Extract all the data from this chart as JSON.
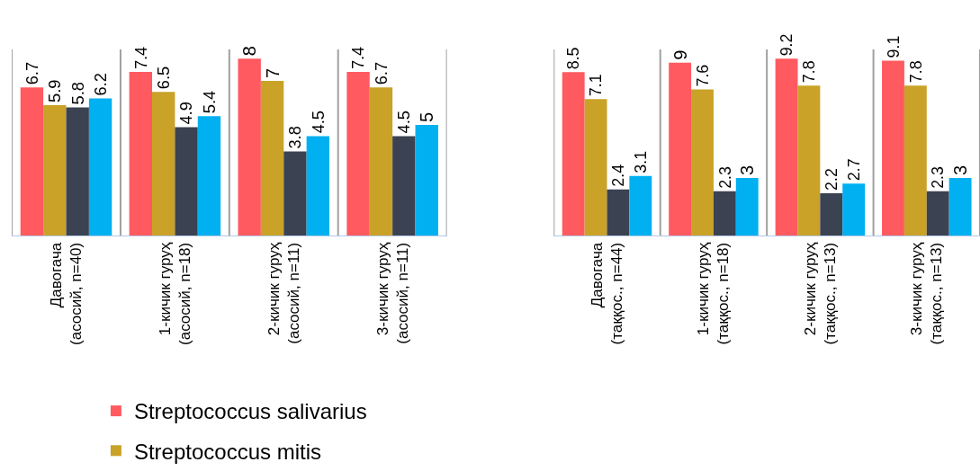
{
  "chart_data": [
    {
      "type": "bar",
      "categories": [
        "Давогача\n(асосий, n=40)",
        "1-кичик гуруҳ\n(асосий, n=18)",
        "2-кичик гуруҳ\n(асосий, n=11)",
        "3-кичик гуруҳ\n(асосий, n=11)"
      ],
      "series": [
        {
          "name": "Streptococcus salivarius",
          "color": "#ff5a5f",
          "values": [
            6.7,
            7.4,
            8,
            7.4
          ]
        },
        {
          "name": "Streptococcus mitis",
          "color": "#c9a227",
          "values": [
            5.9,
            6.5,
            7,
            6.7
          ]
        },
        {
          "color": "#3b4252",
          "values": [
            5.8,
            4.9,
            3.8,
            4.5
          ]
        },
        {
          "color": "#00b0f0",
          "values": [
            6.2,
            5.4,
            4.5,
            5
          ]
        }
      ],
      "data_labels": true,
      "grid": "x",
      "legend": "bottom",
      "tick_labels": "x"
    },
    {
      "type": "bar",
      "categories": [
        "Давогача\n(таққос., n=44)",
        "1-кичик гуруҳ\n(таққос., n=18)",
        "2-кичик гуруҳ\n(таққос., n=13)",
        "3-кичик гуруҳ\n(таққос., n=13)"
      ],
      "series": [
        {
          "color": "#ff5a5f",
          "values": [
            8.5,
            9,
            9.2,
            9.1
          ]
        },
        {
          "color": "#c9a227",
          "values": [
            7.1,
            7.6,
            7.8,
            7.8
          ]
        },
        {
          "color": "#3b4252",
          "values": [
            2.4,
            2.3,
            2.2,
            2.3
          ]
        },
        {
          "color": "#00b0f0",
          "values": [
            3.1,
            3,
            2.7,
            3
          ]
        }
      ],
      "data_labels": true,
      "grid": "x",
      "tick_labels": "x"
    }
  ]
}
